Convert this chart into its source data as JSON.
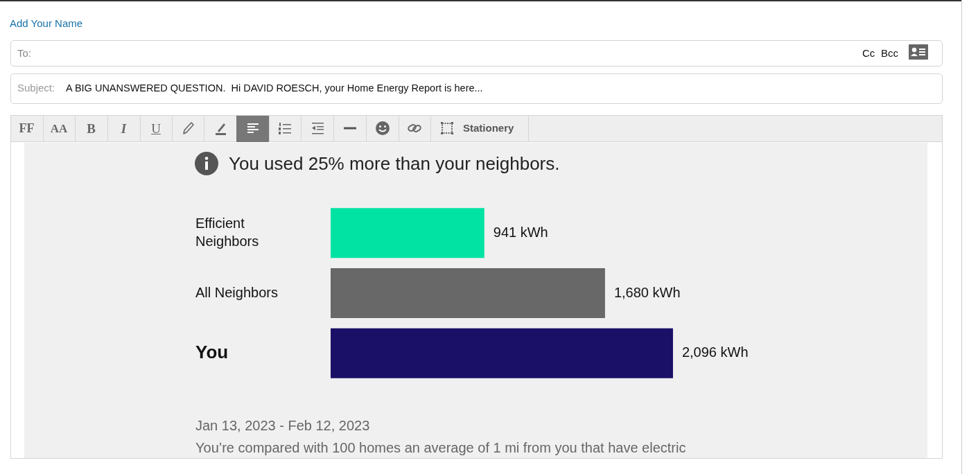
{
  "chart_data": {
    "type": "bar",
    "orientation": "horizontal",
    "title": "You used 25% more than your neighbors.",
    "categories": [
      "Efficient Neighbors",
      "All Neighbors",
      "You"
    ],
    "values": [
      941,
      1680,
      2096
    ],
    "colors": [
      "#00e3a3",
      "#686868",
      "#1b1067"
    ],
    "value_labels": [
      "941 kWh",
      "1,680 kWh",
      "2,096 kWh"
    ],
    "annotations": [
      "Add Your Name",
      "To:",
      "Cc",
      "Bcc",
      "Subject:",
      "A BIG UNANSWERED QUESTION.  Hi DAVID ROESCH, your Home Energy Report is here...",
      "FF",
      "AA",
      "B",
      "I",
      "U",
      "Stationery",
      "Jan 13, 2023 - Feb 12, 2023",
      "You’re compared with 100 homes an average of 1 mi from you that have electric"
    ]
  }
}
